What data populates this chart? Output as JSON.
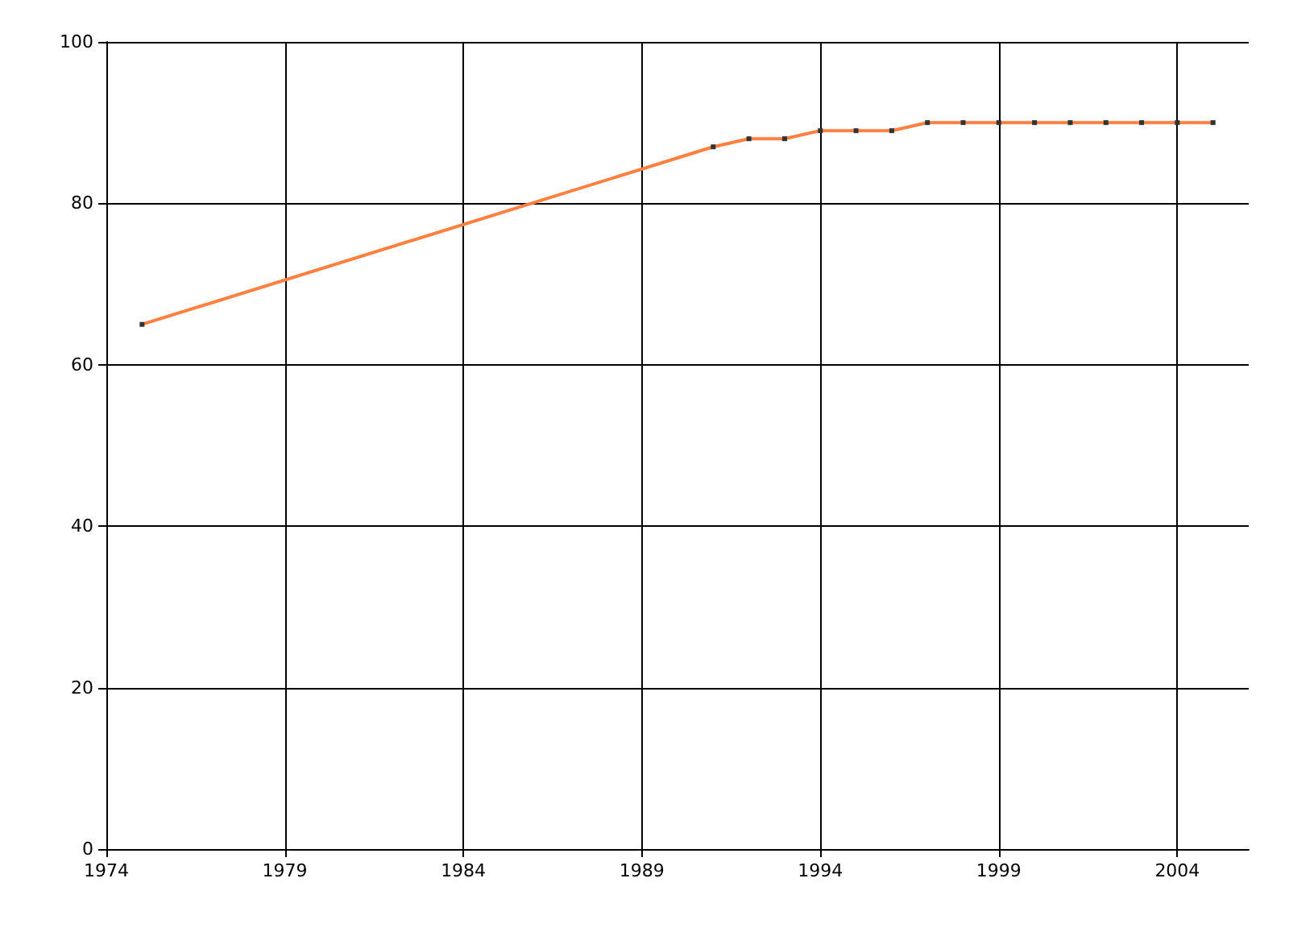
{
  "chart_data": {
    "type": "line",
    "x": [
      1975,
      1991,
      1992,
      1993,
      1994,
      1995,
      1996,
      1997,
      1998,
      1999,
      2000,
      2001,
      2002,
      2003,
      2004,
      2005
    ],
    "series": [
      {
        "color": "#ff8040",
        "values": [
          65,
          87,
          88,
          88,
          89,
          89,
          89,
          90,
          90,
          90,
          90,
          90,
          90,
          90,
          90,
          90
        ]
      }
    ],
    "xlim": [
      1974,
      2006
    ],
    "xticks": [
      1974,
      1979,
      1984,
      1989,
      1994,
      1999,
      2004
    ],
    "ylim": [
      0,
      100
    ],
    "yticks": [
      0,
      20,
      40,
      60,
      80,
      100
    ],
    "grid": true,
    "marker": "square",
    "line_style": "solid"
  }
}
